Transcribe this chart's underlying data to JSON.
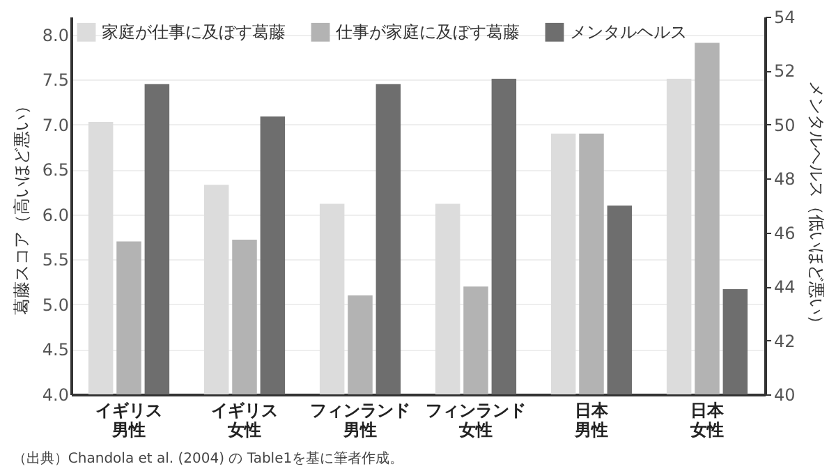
{
  "chart_data": {
    "type": "bar",
    "ylabel": "葛藤スコア（高いほど悪い）",
    "y2label": "メンタルヘルス（低いほど悪い）",
    "annotations": [
      "（出典）Chandola et al. (2004) の Table1を基に筆者作成。"
    ],
    "categories": [
      "イギリス男性",
      "イギリス女性",
      "フィンランド男性",
      "フィンランド女性",
      "日本男性",
      "日本女性"
    ],
    "series": [
      {
        "name": "家庭が仕事に及ぼす葛藤",
        "color": "#dcdcdc",
        "values": [
          7.03,
          6.33,
          6.12,
          6.12,
          6.9,
          7.51
        ]
      },
      {
        "name": "仕事が家庭に及ぼす葛藤",
        "color": "#b3b3b3",
        "values": [
          5.7,
          5.72,
          5.1,
          5.2,
          6.9,
          7.91
        ]
      },
      {
        "name": "メンタルヘルス",
        "color": "#6e6e6e",
        "axis": "y2",
        "values": [
          51.5,
          50.3,
          51.5,
          51.7,
          47.0,
          43.9
        ]
      }
    ],
    "ylim": [
      4,
      8.2
    ],
    "yticks": [
      {
        "value": 4,
        "label": "4.0"
      },
      4.5,
      {
        "value": 5,
        "label": "5.0"
      },
      5.5,
      {
        "value": 6,
        "label": "6.0"
      },
      6.5,
      {
        "value": 7,
        "label": "7.0"
      },
      7.5,
      {
        "value": 8,
        "label": "8.0"
      }
    ],
    "y2lim": [
      40,
      54
    ],
    "y2ticks": [
      40,
      42,
      44,
      46,
      48,
      50,
      52,
      54
    ],
    "grid": "y",
    "legend": "top left"
  }
}
